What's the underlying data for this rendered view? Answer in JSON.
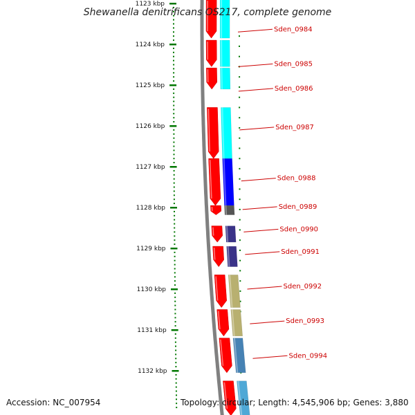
{
  "title": "Shewanella denitrificans OS217, complete genome",
  "footer": {
    "accession": "Accession: NC_007954",
    "topology": "Topology: circular; Length: 4,545,906 bp; Genes: 3,880"
  },
  "axis": {
    "ticks": [
      {
        "label": "1123 kbp",
        "kbp": 1123
      },
      {
        "label": "1124 kbp",
        "kbp": 1124
      },
      {
        "label": "1125 kbp",
        "kbp": 1125
      },
      {
        "label": "1126 kbp",
        "kbp": 1126
      },
      {
        "label": "1127 kbp",
        "kbp": 1127
      },
      {
        "label": "1128 kbp",
        "kbp": 1128
      },
      {
        "label": "1129 kbp",
        "kbp": 1129
      },
      {
        "label": "1130 kbp",
        "kbp": 1130
      },
      {
        "label": "1131 kbp",
        "kbp": 1131
      },
      {
        "label": "1132 kbp",
        "kbp": 1132
      }
    ]
  },
  "genes": [
    {
      "label": "Sden_0984",
      "start": 1122.9,
      "end": 1123.85,
      "color": "#00ffff",
      "callout": 1123.7
    },
    {
      "label": "Sden_0985",
      "start": 1123.9,
      "end": 1124.55,
      "color": "#00ffff",
      "callout": 1124.55
    },
    {
      "label": "Sden_0986",
      "start": 1124.58,
      "end": 1125.1,
      "color": "#00ffff",
      "callout": 1125.15
    },
    {
      "label": "Sden_0987",
      "start": 1125.55,
      "end": 1126.8,
      "color": "#00ffff",
      "callout": 1126.1
    },
    {
      "label": "Sden_0988",
      "start": 1126.8,
      "end": 1127.95,
      "color": "#0000ff",
      "callout": 1127.35
    },
    {
      "label": "Sden_0989",
      "start": 1127.95,
      "end": 1128.18,
      "color": "#555555",
      "callout": 1128.05
    },
    {
      "label": "Sden_0990",
      "start": 1128.45,
      "end": 1128.85,
      "color": "#3a3388",
      "callout": 1128.6
    },
    {
      "label": "Sden_0991",
      "start": 1128.95,
      "end": 1129.45,
      "color": "#3a3388",
      "callout": 1129.15
    },
    {
      "label": "Sden_0992",
      "start": 1129.65,
      "end": 1130.45,
      "color": "#b8b070",
      "callout": 1130.0
    },
    {
      "label": "Sden_0993",
      "start": 1130.5,
      "end": 1131.15,
      "color": "#b8b070",
      "callout": 1130.85
    },
    {
      "label": "Sden_0994",
      "start": 1131.2,
      "end": 1132.05,
      "color": "#4682b4",
      "callout": 1131.7
    },
    {
      "label": "",
      "start": 1132.25,
      "end": 1133.1,
      "color": "#4fa8d6",
      "callout": null
    }
  ],
  "cds_arrows": [
    {
      "start": 1122.9,
      "end": 1123.85
    },
    {
      "start": 1123.9,
      "end": 1124.55
    },
    {
      "start": 1124.58,
      "end": 1125.1
    },
    {
      "start": 1125.55,
      "end": 1126.8
    },
    {
      "start": 1126.8,
      "end": 1127.95
    },
    {
      "start": 1127.95,
      "end": 1128.18
    },
    {
      "start": 1128.45,
      "end": 1128.85
    },
    {
      "start": 1128.95,
      "end": 1129.45
    },
    {
      "start": 1129.65,
      "end": 1130.45
    },
    {
      "start": 1130.5,
      "end": 1131.15
    },
    {
      "start": 1131.2,
      "end": 1132.05
    },
    {
      "start": 1132.25,
      "end": 1133.1
    }
  ],
  "colors": {
    "backbone": "#808080",
    "cds": "#ff0000",
    "callout": "#cc0000",
    "ticks": "#007700"
  }
}
